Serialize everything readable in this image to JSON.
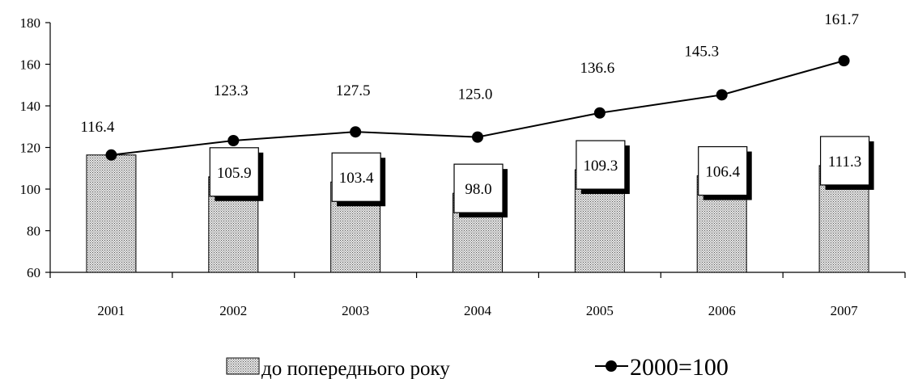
{
  "chart_data": {
    "type": "bar",
    "categories": [
      "2001",
      "2002",
      "2003",
      "2004",
      "2005",
      "2006",
      "2007"
    ],
    "ylim": [
      60,
      180
    ],
    "yticks": [
      60,
      80,
      100,
      120,
      140,
      160,
      180
    ],
    "series": [
      {
        "name": "до попереднього року",
        "type": "bar",
        "values": [
          116.4,
          105.9,
          103.4,
          98.0,
          109.3,
          106.4,
          111.3
        ],
        "labels": [
          "",
          "105.9",
          "103.4",
          "98.0",
          "109.3",
          "106.4",
          "111.3"
        ]
      },
      {
        "name": "2000=100",
        "type": "line",
        "values": [
          116.4,
          123.3,
          127.5,
          125.0,
          136.6,
          145.3,
          161.7
        ],
        "labels": [
          "116.4",
          "123.3",
          "127.5",
          "125.0",
          "136.6",
          "145.3",
          "161.7"
        ]
      }
    ],
    "legend_position": "bottom",
    "grid": false,
    "colors": {
      "bar_fill": "#c9c9c9",
      "bar_stroke": "#000000",
      "line": "#000000"
    }
  }
}
